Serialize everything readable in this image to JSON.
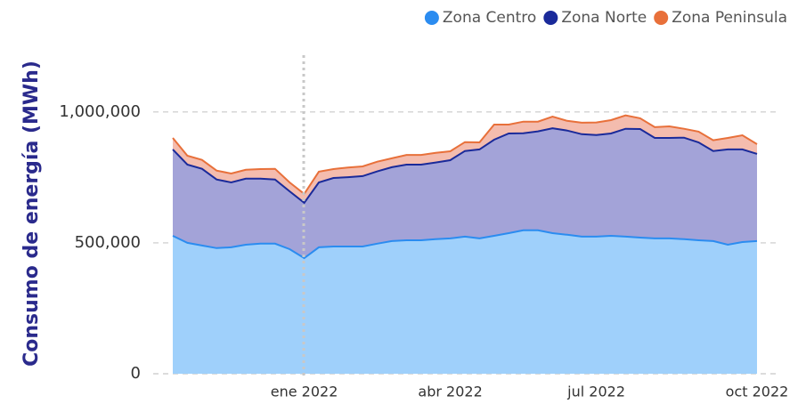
{
  "chart_data": {
    "type": "stacked_area",
    "y_label": "Consumo de energía (MWh)",
    "categories": [
      null,
      null,
      null,
      null,
      null,
      null,
      null,
      null,
      null,
      "ene 2022",
      null,
      null,
      null,
      null,
      null,
      null,
      null,
      null,
      null,
      "abr 2022",
      null,
      null,
      null,
      null,
      null,
      null,
      null,
      null,
      null,
      "jul 2022",
      null,
      null,
      null,
      null,
      null,
      null,
      null,
      null,
      null,
      null,
      "oct 2022"
    ],
    "series": [
      {
        "name": "Zona Centro",
        "color": "#2b8cf0",
        "fill": "#9fd0fb",
        "values": [
          527000,
          500000,
          490000,
          480000,
          483000,
          493000,
          497000,
          497000,
          476000,
          442000,
          483000,
          486000,
          486000,
          486000,
          497000,
          507000,
          510000,
          510000,
          514000,
          517000,
          524000,
          517000,
          527000,
          537000,
          548000,
          548000,
          537000,
          531000,
          524000,
          524000,
          527000,
          524000,
          520000,
          517000,
          517000,
          514000,
          510000,
          507000,
          493000,
          503000,
          507000
        ]
      },
      {
        "name": "Zona Norte",
        "color": "#1a2a9a",
        "fill": "#a3a3d8",
        "values": [
          330000,
          299000,
          293000,
          262000,
          248000,
          252000,
          248000,
          245000,
          221000,
          211000,
          248000,
          262000,
          265000,
          269000,
          276000,
          282000,
          289000,
          289000,
          293000,
          299000,
          327000,
          340000,
          367000,
          381000,
          371000,
          378000,
          401000,
          398000,
          391000,
          388000,
          391000,
          412000,
          415000,
          384000,
          384000,
          388000,
          374000,
          344000,
          364000,
          354000,
          333000
        ]
      },
      {
        "name": "Zona Peninsula",
        "color": "#e8703a",
        "fill": "#f4bcae",
        "values": [
          44000,
          34000,
          34000,
          34000,
          34000,
          34000,
          37000,
          41000,
          34000,
          34000,
          41000,
          34000,
          37000,
          37000,
          37000,
          34000,
          37000,
          37000,
          37000,
          34000,
          34000,
          27000,
          58000,
          34000,
          44000,
          37000,
          44000,
          37000,
          44000,
          48000,
          51000,
          51000,
          41000,
          41000,
          44000,
          34000,
          41000,
          41000,
          44000,
          54000,
          37000
        ]
      }
    ],
    "ylim": [
      0,
      1200000
    ],
    "yticks": [
      0,
      {
        "value": 500000,
        "label": "500,000"
      },
      {
        "value": 1000000,
        "label": "1,000,000"
      }
    ],
    "grid": true,
    "legend": "top-right"
  }
}
